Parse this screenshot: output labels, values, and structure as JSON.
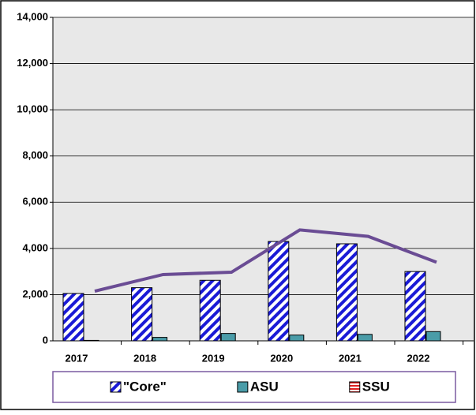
{
  "chart_data": {
    "type": "bar",
    "categories": [
      "2017",
      "2018",
      "2019",
      "2020",
      "2021",
      "2022"
    ],
    "series": [
      {
        "name": "\"Core\"",
        "color": "#1a1ad6",
        "pattern": "diagonal",
        "values": [
          2050,
          2300,
          2620,
          4300,
          4200,
          3000
        ]
      },
      {
        "name": "ASU",
        "color": "#4a9ca8",
        "pattern": "solid",
        "values": [
          20,
          150,
          320,
          250,
          280,
          400
        ]
      },
      {
        "name": "SSU",
        "color": "#e02020",
        "pattern": "horizontal",
        "values": [
          0,
          0,
          0,
          0,
          0,
          0
        ]
      },
      {
        "type": "line",
        "color": "#6a4c94",
        "values": [
          2150,
          2870,
          2970,
          4800,
          4520,
          3400
        ]
      }
    ],
    "ylim": [
      0,
      14000
    ],
    "yticks": [
      0,
      {
        "value": 2000,
        "label": "2,000"
      },
      {
        "value": 4000,
        "label": "4,000"
      },
      {
        "value": 6000,
        "label": "6,000"
      },
      {
        "value": 8000,
        "label": "8,000"
      },
      {
        "value": 10000,
        "label": "10,000"
      },
      {
        "value": 12000,
        "label": "12,000"
      },
      {
        "value": 14000,
        "label": "14,000"
      }
    ],
    "grid": true,
    "legend": "bottom"
  }
}
